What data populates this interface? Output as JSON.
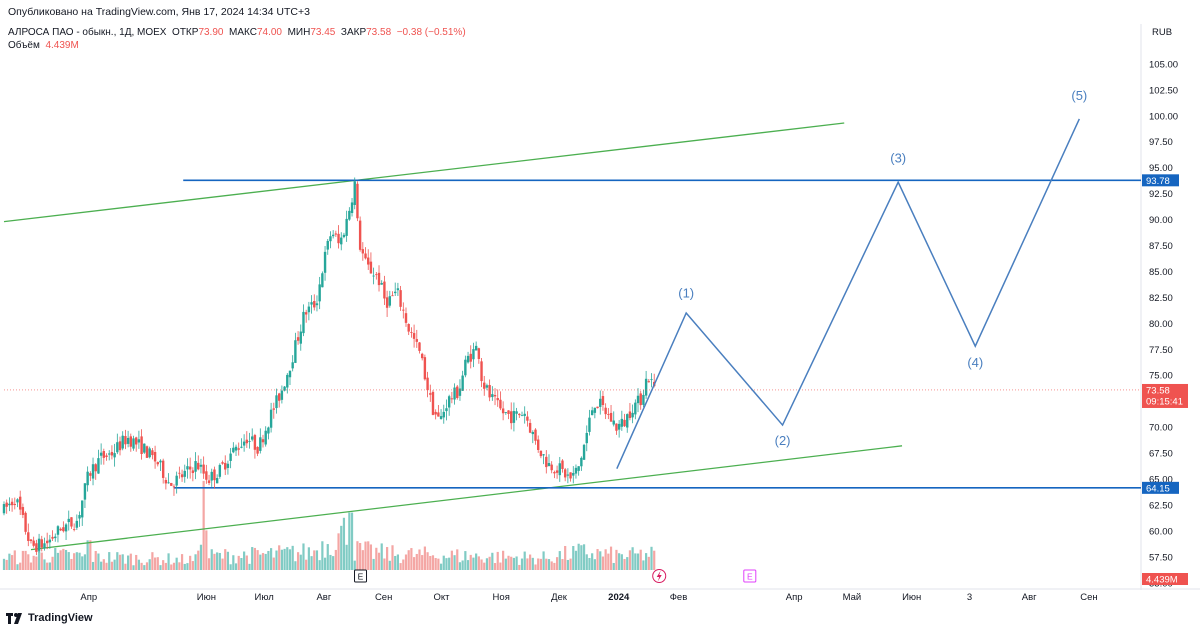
{
  "header": {
    "published_text": "Опубликовано на TradingView.com, Янв 17, 2024 14:34 UTC+3"
  },
  "legend": {
    "symbol_text": "АЛРОСА ПАО - обыкн., 1Д, MOEX",
    "open_label": "ОТКР",
    "open_value": "73.90",
    "high_label": "МАКС",
    "high_value": "74.00",
    "low_label": "МИН",
    "low_value": "73.45",
    "close_label": "ЗАКР",
    "close_value": "73.58",
    "change_value": "−0.38 (−0.51%)",
    "volume_label": "Объём",
    "volume_value": "4.439M"
  },
  "colors": {
    "up": "#26a69a",
    "down": "#ef5350",
    "level_line": "#1565c0",
    "channel_line": "#4caf50",
    "wave_line": "#4a7fbf",
    "vol_up": "#80cbc4",
    "vol_down": "#f4a6a4"
  },
  "footer": {
    "brand": "TradingView"
  },
  "chart_data": {
    "type": "candlestick",
    "currency": "RUB",
    "y_ticks": [
      "55.00",
      "57.50",
      "60.00",
      "62.50",
      "65.00",
      "67.50",
      "70.00",
      "72.50",
      "75.00",
      "77.50",
      "80.00",
      "82.50",
      "85.00",
      "87.50",
      "90.00",
      "92.50",
      "95.00",
      "97.50",
      "100.00",
      "102.50",
      "105.00"
    ],
    "ylim": [
      54.5,
      107.3
    ],
    "x_ticks": [
      {
        "label": "Апр",
        "day": 44
      },
      {
        "label": "Июн",
        "day": 105
      },
      {
        "label": "Июл",
        "day": 135
      },
      {
        "label": "Авг",
        "day": 166
      },
      {
        "label": "Сен",
        "day": 197
      },
      {
        "label": "Окт",
        "day": 227
      },
      {
        "label": "Ноя",
        "day": 258
      },
      {
        "label": "Дек",
        "day": 288
      },
      {
        "label": "2024",
        "day": 319
      },
      {
        "label": "Фев",
        "day": 350
      },
      {
        "label": "Апр",
        "day": 410
      },
      {
        "label": "Май",
        "day": 440
      },
      {
        "label": "Июн",
        "day": 471
      },
      {
        "label": "3",
        "day": 501
      },
      {
        "label": "Авг",
        "day": 532
      },
      {
        "label": "Сен",
        "day": 563
      }
    ],
    "xlim": [
      0,
      590
    ],
    "price_path": [
      [
        0,
        62.0
      ],
      [
        6,
        63.2
      ],
      [
        14,
        58.5
      ],
      [
        22,
        58.8
      ],
      [
        30,
        60.3
      ],
      [
        38,
        61.0
      ],
      [
        44,
        65.5
      ],
      [
        50,
        67.0
      ],
      [
        56,
        67.5
      ],
      [
        64,
        69.0
      ],
      [
        72,
        68.0
      ],
      [
        80,
        66.5
      ],
      [
        86,
        64.5
      ],
      [
        94,
        65.5
      ],
      [
        100,
        66.5
      ],
      [
        106,
        65.0
      ],
      [
        112,
        65.8
      ],
      [
        118,
        67.5
      ],
      [
        126,
        69.0
      ],
      [
        132,
        68.0
      ],
      [
        138,
        71.0
      ],
      [
        144,
        73.5
      ],
      [
        150,
        77.0
      ],
      [
        156,
        81.0
      ],
      [
        162,
        82.0
      ],
      [
        166,
        86.0
      ],
      [
        170,
        89.0
      ],
      [
        174,
        87.5
      ],
      [
        178,
        90.0
      ],
      [
        182,
        93.5
      ],
      [
        184,
        88.0
      ],
      [
        188,
        85.5
      ],
      [
        194,
        84.5
      ],
      [
        198,
        82.0
      ],
      [
        204,
        83.0
      ],
      [
        210,
        79.5
      ],
      [
        216,
        77.0
      ],
      [
        222,
        72.0
      ],
      [
        226,
        70.5
      ],
      [
        230,
        72.5
      ],
      [
        236,
        73.5
      ],
      [
        240,
        76.5
      ],
      [
        246,
        77.8
      ],
      [
        248,
        74.5
      ],
      [
        252,
        73.0
      ],
      [
        258,
        71.5
      ],
      [
        264,
        71.0
      ],
      [
        270,
        71.5
      ],
      [
        276,
        68.5
      ],
      [
        282,
        66.5
      ],
      [
        288,
        66.0
      ],
      [
        294,
        65.0
      ],
      [
        298,
        66.0
      ],
      [
        302,
        69.0
      ],
      [
        306,
        72.5
      ],
      [
        310,
        72.0
      ],
      [
        314,
        71.0
      ],
      [
        318,
        70.0
      ],
      [
        322,
        70.5
      ],
      [
        326,
        72.0
      ],
      [
        330,
        72.5
      ],
      [
        334,
        75.0
      ],
      [
        338,
        73.58
      ]
    ],
    "volume_max_value": 10.0,
    "volume_path": [
      [
        0,
        1.2
      ],
      [
        20,
        1.5
      ],
      [
        50,
        1.3
      ],
      [
        100,
        1.0
      ],
      [
        104,
        9.5
      ],
      [
        106,
        1.4
      ],
      [
        130,
        1.5
      ],
      [
        160,
        1.8
      ],
      [
        180,
        4.2
      ],
      [
        182,
        2.0
      ],
      [
        200,
        1.6
      ],
      [
        240,
        1.4
      ],
      [
        280,
        1.2
      ],
      [
        300,
        1.8
      ],
      [
        320,
        1.4
      ],
      [
        338,
        1.6
      ]
    ],
    "volume_spikes": [
      {
        "day": 104,
        "value": 9.0
      },
      {
        "day": 180,
        "value": 5.8
      },
      {
        "day": 105,
        "value": 4.0
      },
      {
        "day": 44,
        "value": 3.0
      },
      {
        "day": 326,
        "value": 2.3
      }
    ],
    "levels": [
      {
        "price": 93.78,
        "from_day": 93,
        "label": "93.78"
      },
      {
        "price": 64.15,
        "from_day": 88,
        "label": "64.15"
      }
    ],
    "channel_lines": [
      {
        "start": [
          0,
          89.8
        ],
        "end": [
          436,
          99.3
        ]
      },
      {
        "start": [
          14,
          58.2
        ],
        "end": [
          466,
          68.2
        ]
      }
    ],
    "wave_path": [
      [
        318,
        66.0
      ],
      [
        354,
        81.0
      ],
      [
        404,
        70.2
      ],
      [
        464,
        93.6
      ],
      [
        504,
        77.8
      ],
      [
        558,
        99.7
      ]
    ],
    "wave_labels": [
      {
        "text": "(1)",
        "day": 354,
        "price": 82.5
      },
      {
        "text": "(2)",
        "day": 404,
        "price": 68.3
      },
      {
        "text": "(3)",
        "day": 464,
        "price": 95.5
      },
      {
        "text": "(4)",
        "day": 504,
        "price": 75.8
      },
      {
        "text": "(5)",
        "day": 558,
        "price": 101.5
      }
    ],
    "last_price": {
      "value": "73.58",
      "countdown": "09:15:41"
    },
    "last_volume": "4.439M",
    "earnings_markers": [
      {
        "day": 185,
        "text": "E"
      },
      {
        "day": 387,
        "text": "E"
      }
    ],
    "dividend_marker": {
      "day": 340
    }
  }
}
